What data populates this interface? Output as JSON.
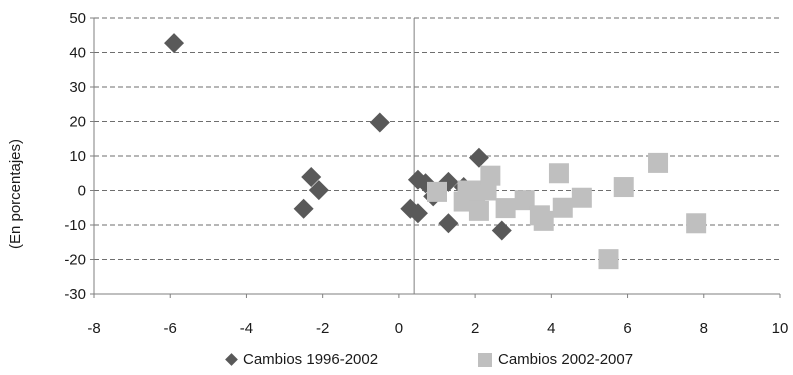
{
  "chart_data": {
    "type": "scatter",
    "ylabel": "(En porcentajes)",
    "xlabel": "",
    "title": "",
    "xlim": [
      -8,
      10
    ],
    "ylim": [
      -30,
      50
    ],
    "x_ticks": [
      "-8",
      "-6",
      "-4",
      "-2",
      "0",
      "2",
      "4",
      "6",
      "8",
      "10"
    ],
    "y_ticks": [
      "50",
      "40",
      "30",
      "20",
      "10",
      "0",
      "-10",
      "-20",
      "-30"
    ],
    "x_tick_values": [
      -8,
      -6,
      -4,
      -2,
      0,
      2,
      4,
      6,
      8,
      10
    ],
    "y_tick_values": [
      50,
      40,
      30,
      20,
      10,
      0,
      -10,
      -20,
      -30
    ],
    "grid": "horizontal-dashed",
    "legend_position": "bottom",
    "series": [
      {
        "name": "Cambios 1996-2002",
        "marker": "diamond",
        "color": "#595959",
        "points": [
          {
            "x": -5.9,
            "y": 42.7
          },
          {
            "x": -0.5,
            "y": 19.7
          },
          {
            "x": -2.3,
            "y": 3.9
          },
          {
            "x": -2.1,
            "y": 0.1
          },
          {
            "x": -2.5,
            "y": -5.3
          },
          {
            "x": 0.3,
            "y": -5.3
          },
          {
            "x": 0.5,
            "y": 3.1
          },
          {
            "x": 0.5,
            "y": -6.6
          },
          {
            "x": 0.7,
            "y": 2.1
          },
          {
            "x": 0.9,
            "y": -1.7
          },
          {
            "x": 1.3,
            "y": 2.5
          },
          {
            "x": 1.3,
            "y": -9.5
          },
          {
            "x": 1.7,
            "y": 1.0
          },
          {
            "x": 2.1,
            "y": 9.5
          },
          {
            "x": 2.7,
            "y": -11.6
          }
        ]
      },
      {
        "name": "Cambios 2002-2007",
        "marker": "square",
        "color": "#bfbfbf",
        "points": [
          {
            "x": 1.0,
            "y": -0.4
          },
          {
            "x": 1.7,
            "y": -3.2
          },
          {
            "x": 1.8,
            "y": 0.0
          },
          {
            "x": 2.0,
            "y": -2.1
          },
          {
            "x": 2.1,
            "y": -5.9
          },
          {
            "x": 2.3,
            "y": 0.0
          },
          {
            "x": 2.4,
            "y": 4.3
          },
          {
            "x": 2.8,
            "y": -5.1
          },
          {
            "x": 3.3,
            "y": -2.8
          },
          {
            "x": 3.7,
            "y": -7.2
          },
          {
            "x": 3.8,
            "y": -8.8
          },
          {
            "x": 4.2,
            "y": 5.0
          },
          {
            "x": 4.3,
            "y": -5.0
          },
          {
            "x": 4.8,
            "y": -2.1
          },
          {
            "x": 5.5,
            "y": -19.9
          },
          {
            "x": 5.9,
            "y": 1.0
          },
          {
            "x": 6.8,
            "y": 8.0
          },
          {
            "x": 7.8,
            "y": -9.5
          }
        ]
      }
    ]
  }
}
